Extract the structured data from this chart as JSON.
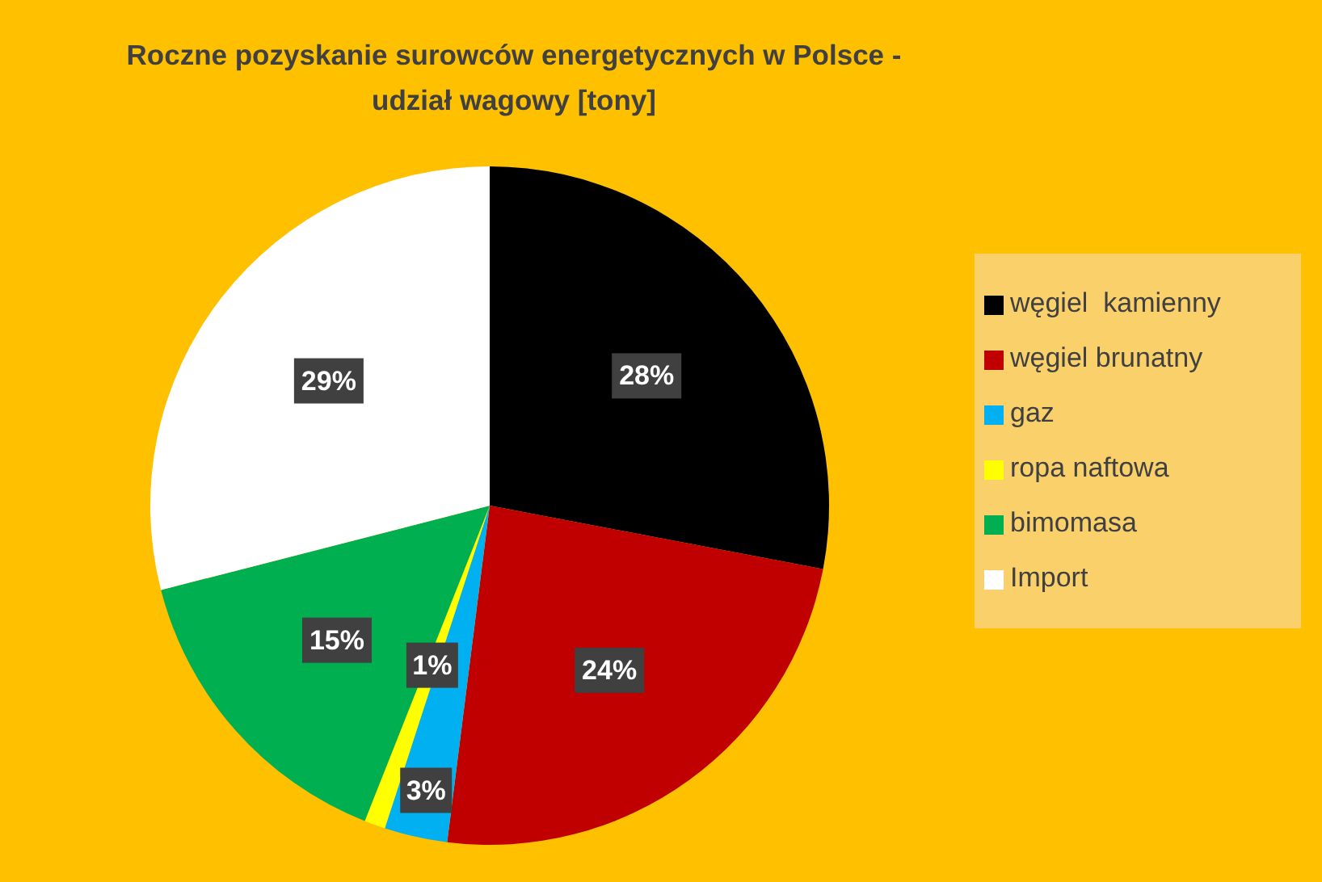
{
  "chart_data": {
    "type": "pie",
    "title": "Roczne pozyskanie surowców energetycznych w Polsce - udział wagowy [tony]",
    "categories": [
      "węgiel  kamienny",
      "węgiel brunatny",
      "gaz",
      "ropa naftowa",
      "bimomasa",
      "Import"
    ],
    "values": [
      28,
      24,
      3,
      1,
      15,
      29
    ],
    "colors": [
      "#000000",
      "#c00000",
      "#00b0f0",
      "#ffff00",
      "#00b050",
      "#ffffff"
    ],
    "value_labels": [
      "28%",
      "24%",
      "3%",
      "1%",
      "15%",
      "29%"
    ],
    "legend": "right"
  }
}
